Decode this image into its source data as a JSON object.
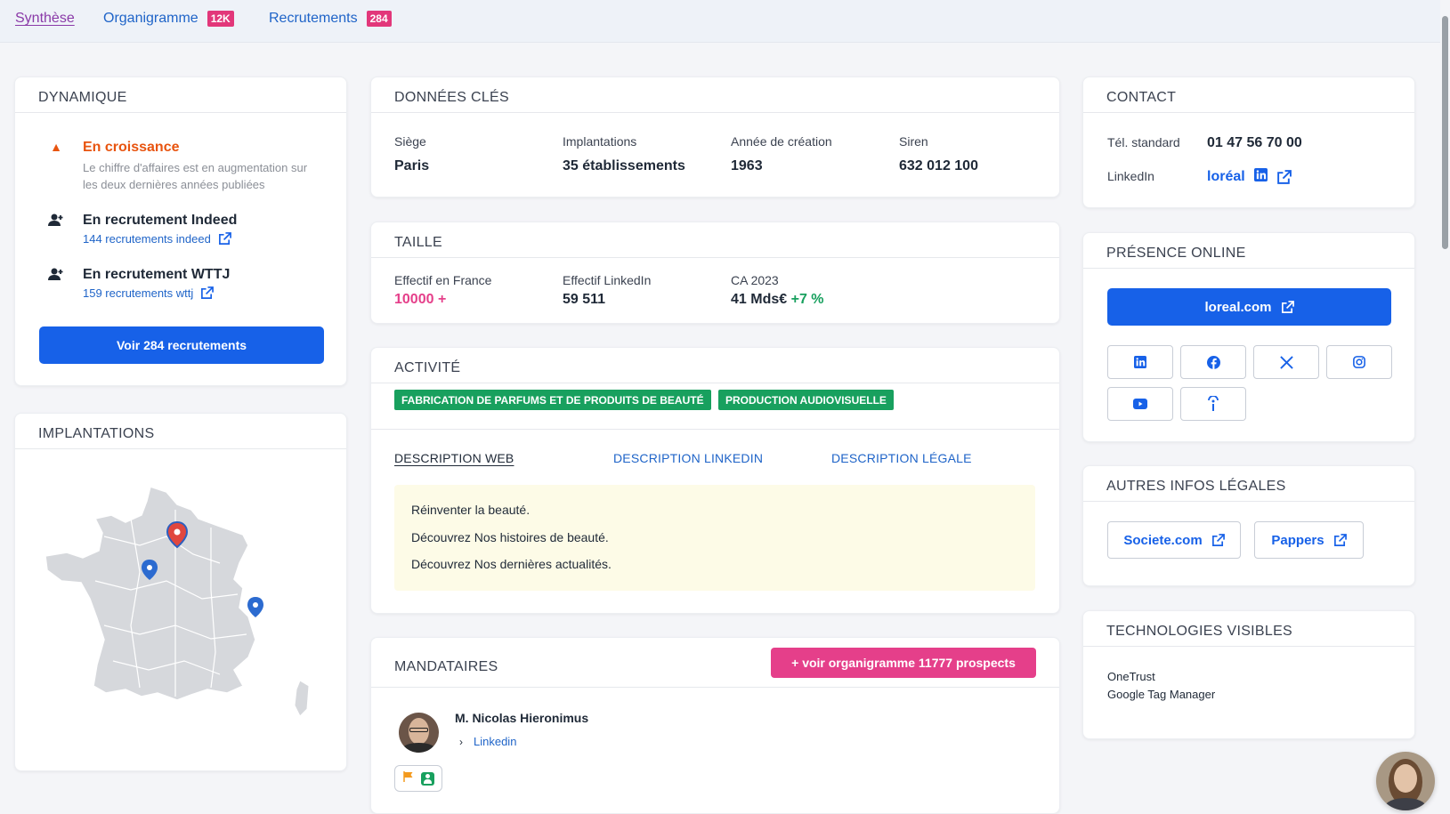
{
  "tabs": [
    {
      "label": "Synthèse"
    },
    {
      "label": "Organigramme",
      "badge": "12K"
    },
    {
      "label": "Recrutements",
      "badge": "284"
    }
  ],
  "dynamique": {
    "title": "DYNAMIQUE",
    "growth": {
      "title": "En croissance",
      "desc": "Le chiffre d'affaires est en augmentation sur les deux dernières années publiées"
    },
    "indeed": {
      "title": "En recrutement Indeed",
      "link": "144 recrutements indeed"
    },
    "wttj": {
      "title": "En recrutement WTTJ",
      "link": "159 recrutements wttj"
    },
    "button": "Voir 284 recrutements"
  },
  "implantations": {
    "title": "IMPLANTATIONS"
  },
  "donnees": {
    "title": "DONNÉES CLÉS",
    "siege_label": "Siège",
    "siege": "Paris",
    "impl_label": "Implantations",
    "impl": "35 établissements",
    "annee_label": "Année de création",
    "annee": "1963",
    "siren_label": "Siren",
    "siren": "632 012 100"
  },
  "taille": {
    "title": "TAILLE",
    "effectif_fr_label": "Effectif en France",
    "effectif_fr": "10000 +",
    "effectif_li_label": "Effectif LinkedIn",
    "effectif_li": "59 511",
    "ca_label": "CA 2023",
    "ca": "41 Mds€",
    "ca_growth": "+7 %"
  },
  "activite": {
    "title": "ACTIVITÉ",
    "tags": [
      "FABRICATION DE PARFUMS ET DE PRODUITS DE BEAUTÉ",
      "PRODUCTION AUDIOVISUELLE"
    ],
    "desc_tabs": [
      "DESCRIPTION WEB",
      "DESCRIPTION LINKEDIN",
      "DESCRIPTION LÉGALE"
    ],
    "desc_lines": [
      "Réinventer la beauté.",
      "Découvrez Nos histoires de beauté.",
      "Découvrez Nos dernières actualités."
    ]
  },
  "mandataires": {
    "title": "MANDATAIRES",
    "button": "+ voir organigramme 11777 prospects",
    "person": {
      "name": "M. Nicolas Hieronimus",
      "link": "Linkedin"
    }
  },
  "contact": {
    "title": "CONTACT",
    "tel_label": "Tél. standard",
    "tel": "01 47 56 70 00",
    "linkedin_label": "LinkedIn",
    "linkedin": "loréal"
  },
  "presence": {
    "title": "PRÉSENCE ONLINE",
    "website": "loreal.com",
    "icons": [
      "linkedin-icon",
      "facebook-icon",
      "x-icon",
      "instagram-icon",
      "youtube-icon",
      "info-icon"
    ]
  },
  "legales": {
    "title": "AUTRES INFOS LÉGALES",
    "links": [
      "Societe.com",
      "Pappers"
    ]
  },
  "technologies": {
    "title": "TECHNOLOGIES VISIBLES",
    "items": [
      "OneTrust",
      "Google Tag Manager"
    ]
  },
  "colors": {
    "accent": "#1761e8",
    "pink": "#e53f8a",
    "green": "#18a05e",
    "orange": "#e8540f"
  }
}
